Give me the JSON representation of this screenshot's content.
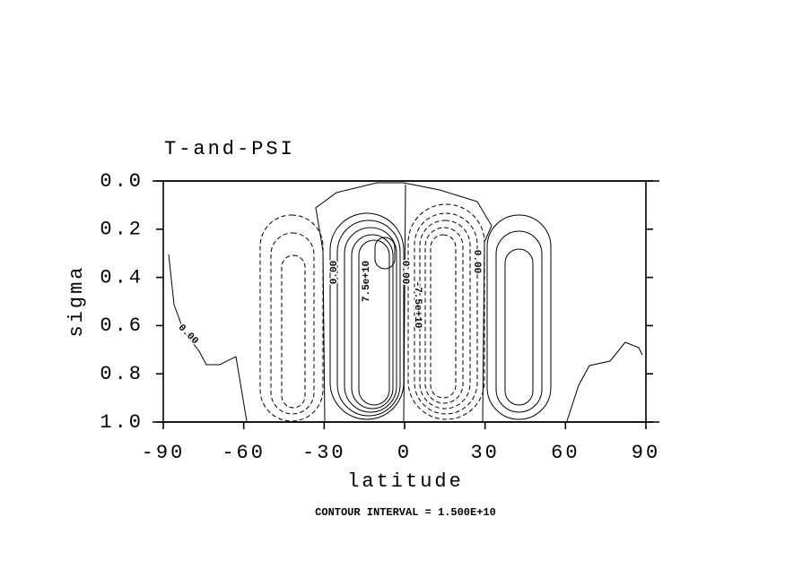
{
  "chart_data": {
    "type": "contour",
    "title": "T-and-PSI",
    "x_label": "latitude",
    "y_label": "sigma",
    "xlim": [
      -90,
      90
    ],
    "ylim": [
      0,
      1
    ],
    "xticks": [
      -90,
      -60,
      -30,
      0,
      30,
      60,
      90
    ],
    "yticks": [
      {
        "value": 0,
        "label": "0.0"
      },
      {
        "value": 0.2,
        "label": "0.2"
      },
      {
        "value": 0.4,
        "label": "0.4"
      },
      {
        "value": 0.6,
        "label": "0.6"
      },
      {
        "value": 0.8,
        "label": "0.8"
      },
      {
        "value": 1,
        "label": "1.0"
      }
    ],
    "contour_labels": [
      "0.00",
      "0.00",
      "7.5e+10",
      "0.00",
      "-7.5e+10",
      "0.00"
    ],
    "footer": "CONTOUR INTERVAL = 1.500E+10"
  }
}
